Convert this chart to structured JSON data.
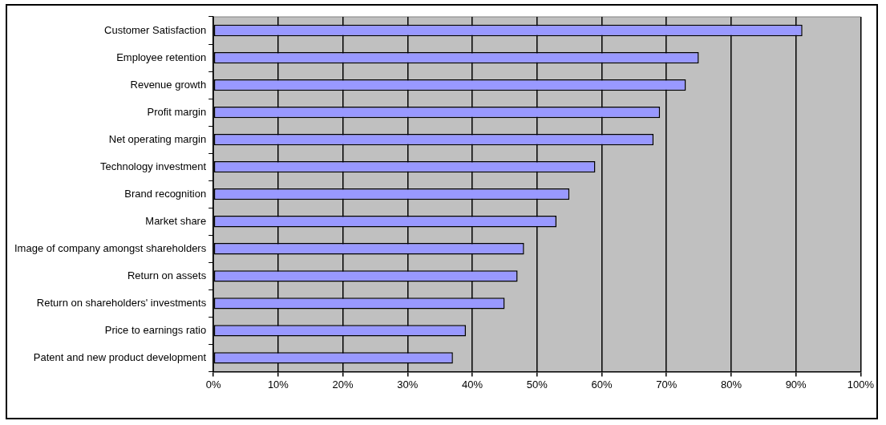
{
  "chart_data": {
    "type": "bar",
    "orientation": "horizontal",
    "categories": [
      "Customer Satisfaction",
      "Employee retention",
      "Revenue growth",
      "Profit margin",
      "Net operating margin",
      "Technology investment",
      "Brand recognition",
      "Market share",
      "Image of company amongst shareholders",
      "Return on assets",
      "Return on shareholders' investments",
      "Price to earnings ratio",
      "Patent and new product development"
    ],
    "values": [
      91,
      75,
      73,
      69,
      68,
      59,
      55,
      53,
      48,
      47,
      45,
      39,
      37
    ],
    "color": "#9999ff",
    "xlim": [
      0,
      100
    ],
    "xticks": [
      {
        "value": 0,
        "label": "0%"
      },
      {
        "value": 10,
        "label": "10%"
      },
      {
        "value": 20,
        "label": "20%"
      },
      {
        "value": 30,
        "label": "30%"
      },
      {
        "value": 40,
        "label": "40%"
      },
      {
        "value": 50,
        "label": "50%"
      },
      {
        "value": 60,
        "label": "60%"
      },
      {
        "value": 70,
        "label": "70%"
      },
      {
        "value": 80,
        "label": "80%"
      },
      {
        "value": 90,
        "label": "90%"
      },
      {
        "value": 100,
        "label": "100%"
      }
    ],
    "grid": "x",
    "legend": false
  }
}
